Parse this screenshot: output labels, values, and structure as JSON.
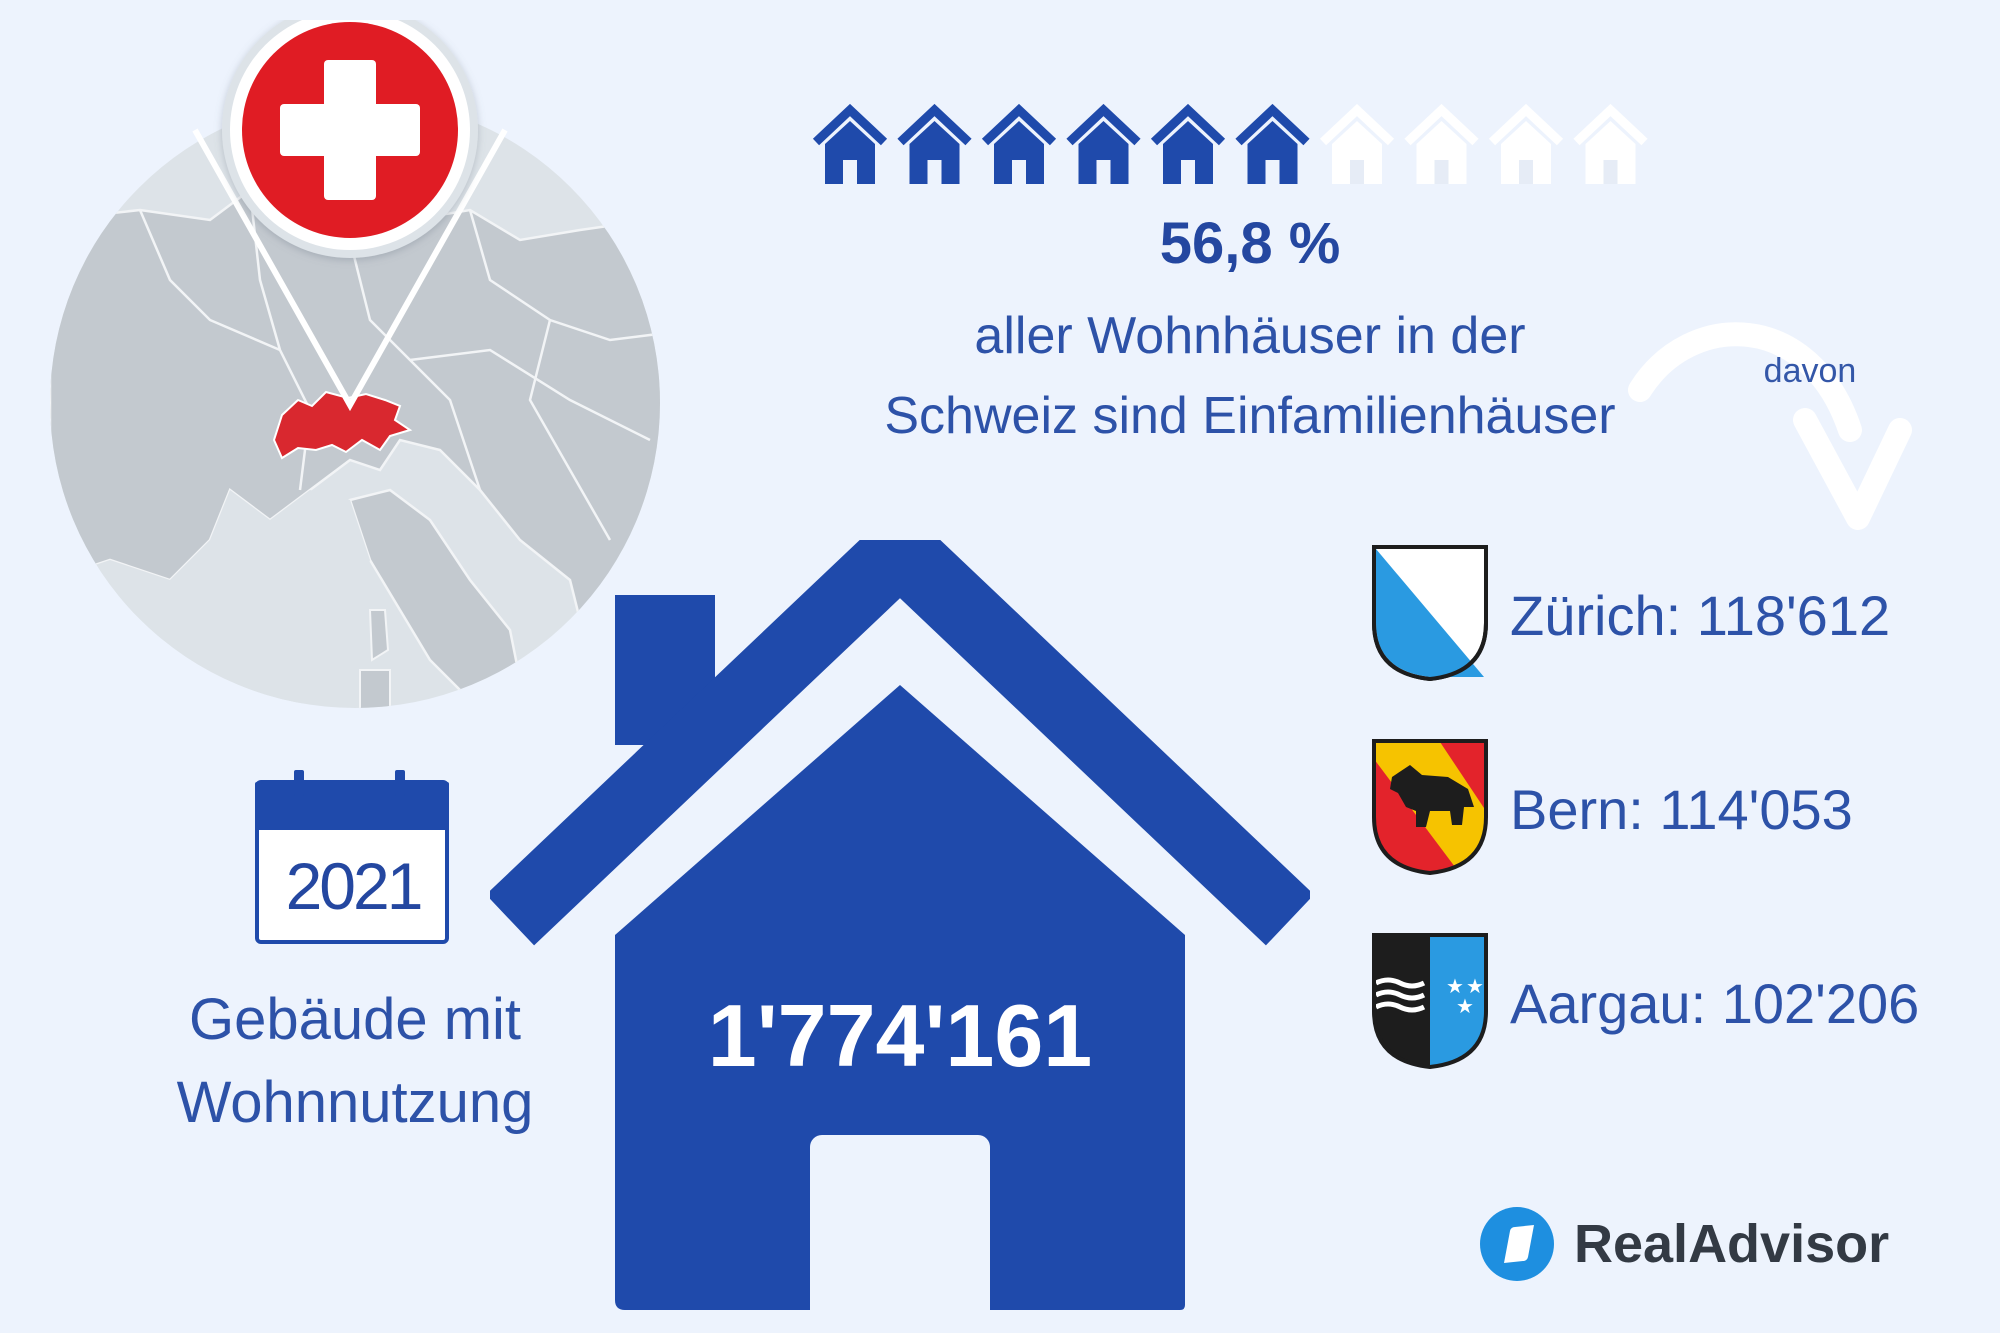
{
  "headline": {
    "percentage": "56,8 %",
    "description_line1": "aller Wohnhäuser in der",
    "description_line2": "Schweiz sind Einfamilienhäuser",
    "share": 0.6
  },
  "davon_label": "davon",
  "total": {
    "value": "1'774'161",
    "year": "2021",
    "label_line1": "Gebäude mit",
    "label_line2": "Wohnnutzung"
  },
  "cantons": [
    {
      "name": "Zürich",
      "label": "Zürich: 118'612",
      "icon": "zurich-coat-of-arms-icon"
    },
    {
      "name": "Bern",
      "label": "Bern: 114'053",
      "icon": "bern-coat-of-arms-icon"
    },
    {
      "name": "Aargau",
      "label": "Aargau: 102'206",
      "icon": "aargau-coat-of-arms-icon"
    }
  ],
  "brand": {
    "name": "RealAdvisor"
  },
  "colors": {
    "background": "#edf3fd",
    "primary_blue": "#1f4aab",
    "swiss_red": "#d9282f",
    "map_gray": "#c9ced3"
  }
}
